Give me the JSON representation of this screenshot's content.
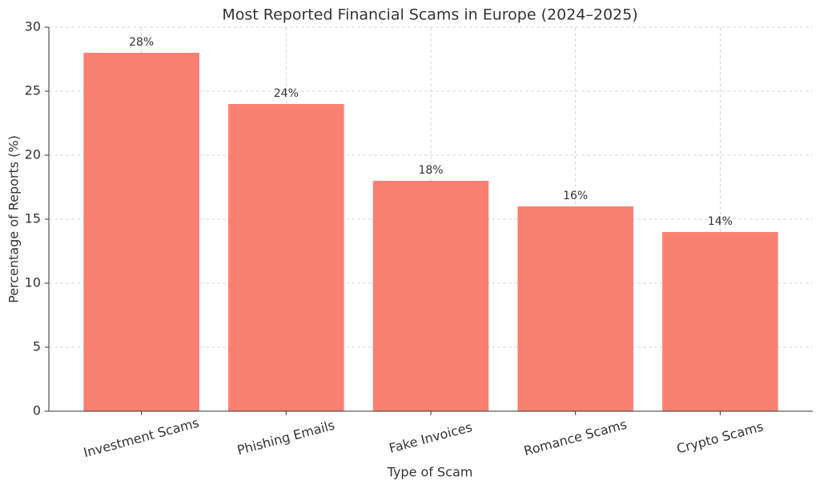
{
  "chart_data": {
    "type": "bar",
    "title": "Most Reported Financial Scams in Europe (2024–2025)",
    "x_label": "Type of Scam",
    "y_label": "Percentage of Reports (%)",
    "categories": [
      "Investment Scams",
      "Phishing Emails",
      "Fake Invoices",
      "Romance Scams",
      "Crypto Scams"
    ],
    "values": [
      28,
      24,
      18,
      16,
      14
    ],
    "value_labels": [
      "28%",
      "24%",
      "18%",
      "16%",
      "14%"
    ],
    "color": "#fa8072",
    "ylim": [
      0,
      30
    ],
    "yticks": [
      0,
      5,
      10,
      15,
      20,
      25,
      30
    ],
    "grid": true
  }
}
